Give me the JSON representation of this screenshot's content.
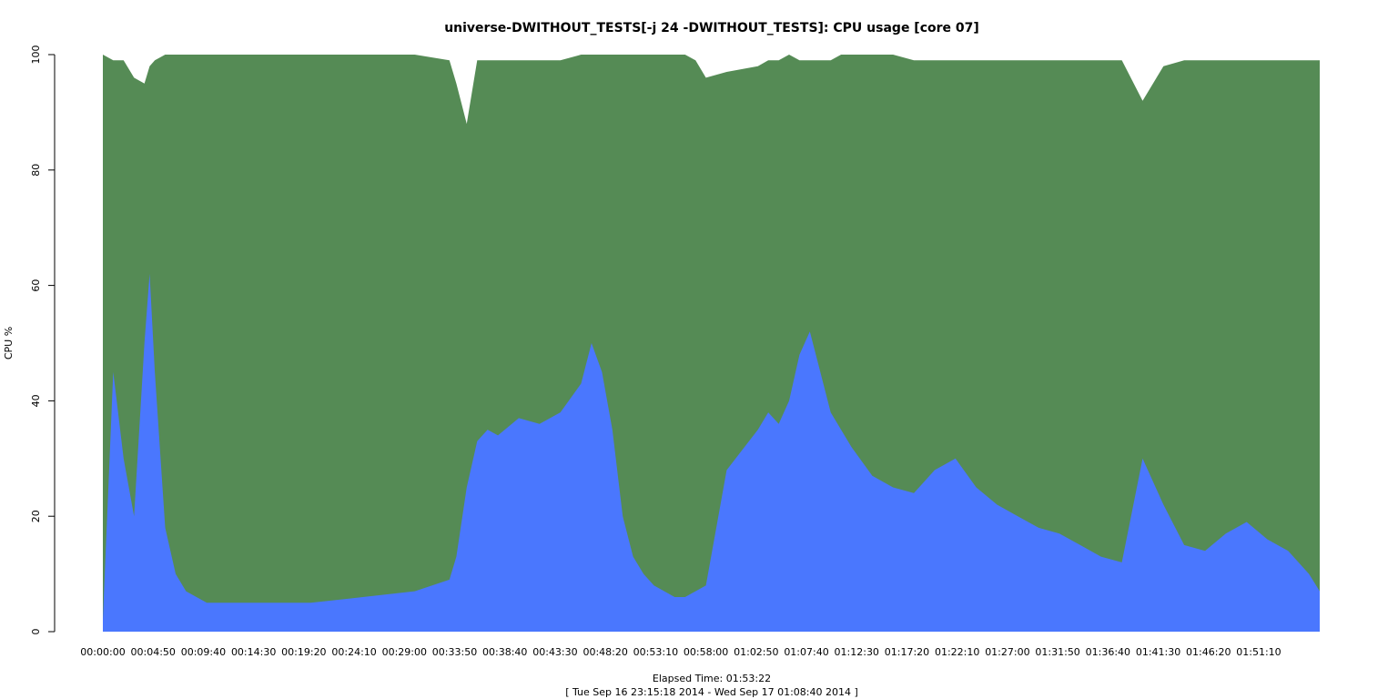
{
  "chart_data": {
    "type": "area",
    "title": "universe-DWITHOUT_TESTS[-j 24  -DWITHOUT_TESTS]: CPU usage [core 07]",
    "xlabel": "Elapsed Time: 01:53:22",
    "xlabel2": "[ Tue Sep 16 23:15:18 2014 - Wed Sep 17 01:08:40 2014 ]",
    "ylabel": "CPU %",
    "ylim": [
      0,
      100
    ],
    "xlim_seconds": [
      0,
      7022
    ],
    "y_ticks": [
      "0",
      "20",
      "40",
      "60",
      "80",
      "100"
    ],
    "x_tick_labels": [
      "00:00:00",
      "00:04:50",
      "00:09:40",
      "00:14:30",
      "00:19:20",
      "00:24:10",
      "00:29:00",
      "00:33:50",
      "00:38:40",
      "00:43:30",
      "00:48:20",
      "00:53:10",
      "00:58:00",
      "01:02:50",
      "01:07:40",
      "01:12:30",
      "01:17:20",
      "01:22:10",
      "01:27:00",
      "01:31:50",
      "01:36:40",
      "01:41:30",
      "01:46:20",
      "01:51:10"
    ],
    "grid": false,
    "legend": "none",
    "colors": {
      "lower_series": "#4a77fe",
      "upper_series": "#558b55",
      "axis": "#000000"
    },
    "x_seconds": [
      0,
      60,
      120,
      180,
      240,
      270,
      300,
      360,
      420,
      480,
      600,
      900,
      1200,
      1500,
      1800,
      2000,
      2040,
      2100,
      2160,
      2220,
      2280,
      2400,
      2520,
      2640,
      2760,
      2820,
      2880,
      2940,
      3000,
      3060,
      3120,
      3180,
      3240,
      3300,
      3360,
      3420,
      3480,
      3600,
      3780,
      3840,
      3900,
      3960,
      4020,
      4080,
      4140,
      4200,
      4260,
      4320,
      4440,
      4560,
      4680,
      4800,
      4920,
      5040,
      5160,
      5280,
      5400,
      5520,
      5640,
      5760,
      5880,
      6000,
      6120,
      6240,
      6360,
      6480,
      6600,
      6720,
      6840,
      6960,
      7022
    ],
    "series": [
      {
        "values": [
          2,
          45,
          30,
          20,
          50,
          62,
          45,
          18,
          10,
          7,
          5,
          5,
          5,
          6,
          7,
          9,
          13,
          25,
          33,
          35,
          34,
          37,
          36,
          38,
          43,
          50,
          45,
          35,
          20,
          13,
          10,
          8,
          7,
          6,
          6,
          7,
          8,
          28,
          35,
          38,
          36,
          40,
          48,
          52,
          45,
          38,
          35,
          32,
          27,
          25,
          24,
          28,
          30,
          25,
          22,
          20,
          18,
          17,
          15,
          13,
          12,
          30,
          22,
          15,
          14,
          17,
          19,
          16,
          14,
          10,
          7
        ]
      },
      {
        "values": [
          100,
          99,
          99,
          96,
          95,
          98,
          99,
          100,
          100,
          100,
          100,
          100,
          100,
          100,
          100,
          99,
          95,
          88,
          99,
          99,
          99,
          99,
          99,
          99,
          100,
          100,
          100,
          100,
          100,
          100,
          100,
          100,
          100,
          100,
          100,
          99,
          96,
          97,
          98,
          99,
          99,
          100,
          99,
          99,
          99,
          99,
          100,
          100,
          100,
          100,
          99,
          99,
          99,
          99,
          99,
          99,
          99,
          99,
          99,
          99,
          99,
          92,
          98,
          99,
          99,
          99,
          99,
          99,
          99,
          99,
          99
        ]
      }
    ]
  }
}
